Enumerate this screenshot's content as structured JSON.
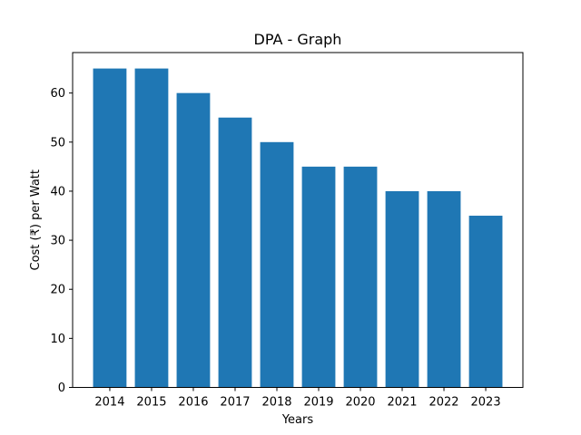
{
  "chart_data": {
    "type": "bar",
    "title": "DPA - Graph",
    "xlabel": "Years",
    "ylabel": "Cost (₹) per Watt",
    "categories": [
      "2014",
      "2015",
      "2016",
      "2017",
      "2018",
      "2019",
      "2020",
      "2021",
      "2022",
      "2023"
    ],
    "values": [
      65,
      65,
      60,
      55,
      50,
      45,
      45,
      40,
      40,
      35
    ],
    "ylim": [
      0,
      68.25
    ],
    "yticks": [
      0,
      10,
      20,
      30,
      40,
      50,
      60
    ],
    "bar_color": "#1f77b4",
    "grid": false,
    "legend": "none"
  }
}
